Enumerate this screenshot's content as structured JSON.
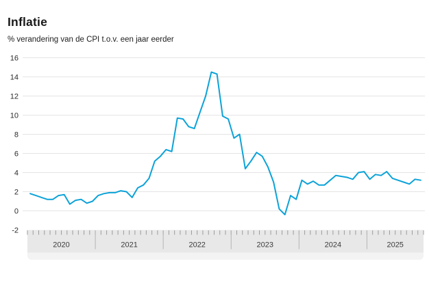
{
  "header": {
    "title": "Inflatie",
    "subtitle": "% verandering van de CPI t.o.v. een jaar eerder"
  },
  "chart_data": {
    "type": "line",
    "title": "Inflatie",
    "subtitle": "% verandering van de CPI t.o.v. een jaar eerder",
    "unit": "%",
    "frequency": "monthly",
    "x_start": "2020-01",
    "x_end": "2025-10",
    "years": [
      "2020",
      "2021",
      "2022",
      "2023",
      "2024",
      "2025"
    ],
    "months_per_year": [
      12,
      12,
      12,
      12,
      12,
      10
    ],
    "values": [
      1.8,
      1.6,
      1.4,
      1.2,
      1.2,
      1.6,
      1.7,
      0.7,
      1.1,
      1.2,
      0.8,
      1.0,
      1.6,
      1.8,
      1.9,
      1.9,
      2.1,
      2.0,
      1.4,
      2.4,
      2.7,
      3.4,
      5.2,
      5.7,
      6.4,
      6.2,
      9.7,
      9.6,
      8.8,
      8.6,
      10.3,
      12.0,
      14.5,
      14.3,
      9.9,
      9.6,
      7.6,
      8.0,
      4.4,
      5.2,
      6.1,
      5.7,
      4.6,
      3.0,
      0.2,
      -0.4,
      1.6,
      1.2,
      3.2,
      2.8,
      3.1,
      2.7,
      2.7,
      3.2,
      3.7,
      3.6,
      3.5,
      3.3,
      4.0,
      4.1,
      3.3,
      3.8,
      3.7,
      4.1,
      3.4,
      3.2,
      3.0,
      2.8,
      3.3,
      3.2
    ],
    "ylim": [
      -2,
      16
    ],
    "yticks": [
      16,
      14,
      12,
      10,
      8,
      6,
      4,
      2,
      0,
      -2
    ],
    "grid": true,
    "legend_position": "none",
    "line_color": "#0ba2d8",
    "colors": {
      "grid": "#e4e4e4",
      "band": "#e8e8e8",
      "band_footer": "#f3f3f3",
      "tick": "#9b9b9b",
      "separator": "#b4b4b4"
    }
  }
}
